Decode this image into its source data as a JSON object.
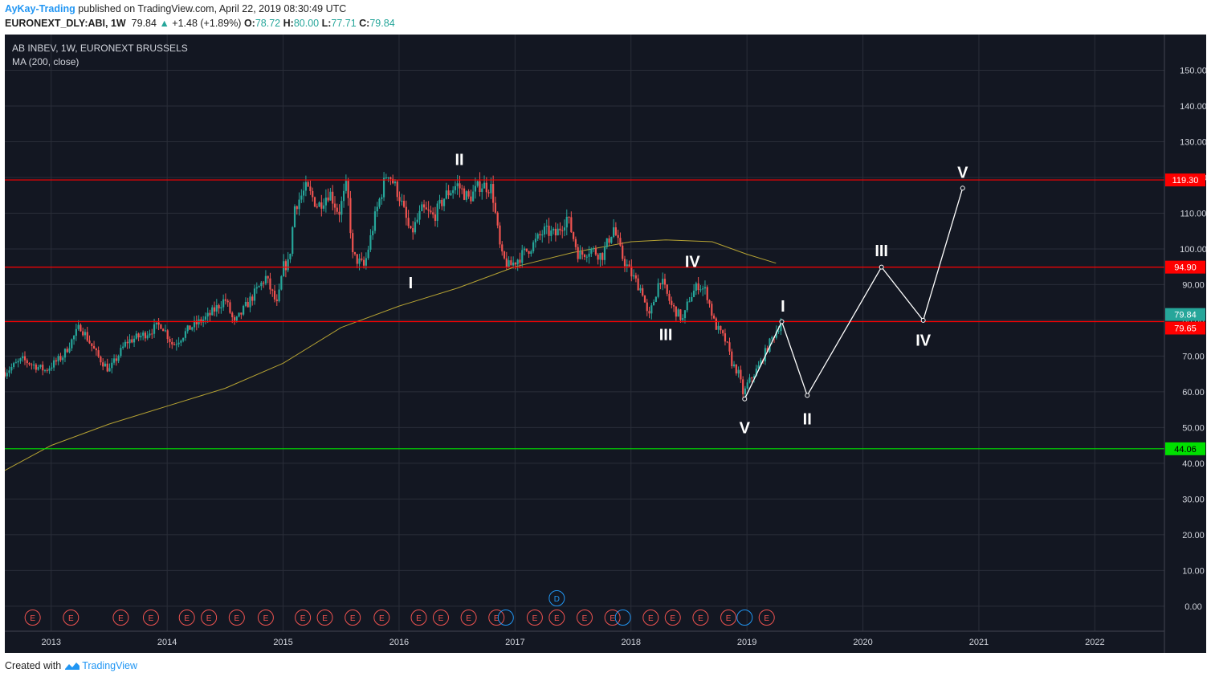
{
  "header": {
    "author": "AyKay-Trading",
    "published_text": "published on TradingView.com, April 22, 2019 08:30:49 UTC",
    "symbol_line": "EURONEXT_DLY:ABI, 1W",
    "last": "79.84",
    "change": "+1.48 (+1.89%)",
    "open_label": "O:",
    "open": "78.72",
    "high_label": "H:",
    "high": "80.00",
    "low_label": "L:",
    "low": "77.71",
    "close_label": "C:",
    "close": "79.84"
  },
  "legend": {
    "title": "AB INBEV, 1W, EURONEXT BRUSSELS",
    "indicator": "MA (200, close)"
  },
  "footer": {
    "created_with": "Created with",
    "brand": "TradingView"
  },
  "colors": {
    "background": "#131722",
    "grid": "#2a2e39",
    "up": "#26a69a",
    "down": "#ef5350",
    "level_red": "#ff0000",
    "level_green": "#00e000",
    "ma": "#b5a233",
    "projection": "#ffffff",
    "last_price": "#26a69a",
    "event": "#ef5350",
    "dividend": "#2196f3"
  },
  "chart_data": {
    "type": "candlestick",
    "title": "AB INBEV, 1W, EURONEXT BRUSSELS",
    "timeframe": "1W",
    "x_range": [
      2012.6,
      2022.6
    ],
    "x_ticks": [
      2013,
      2014,
      2015,
      2016,
      2017,
      2018,
      2019,
      2020,
      2021,
      2022
    ],
    "x_tick_labels": [
      "2013",
      "2014",
      "2015",
      "2016",
      "2017",
      "2018",
      "2019",
      "2020",
      "2021",
      "2022"
    ],
    "ylim": [
      -7,
      160
    ],
    "y_ticks": [
      0,
      10,
      20,
      30,
      40,
      50,
      60,
      70,
      80,
      90,
      100,
      110,
      120,
      130,
      140,
      150
    ],
    "y_tick_labels": [
      "0.00",
      "10.00",
      "20.00",
      "30.00",
      "40.00",
      "50.00",
      "60.00",
      "70.00",
      "80.00",
      "90.00",
      "100.00",
      "110.00",
      "120.00",
      "130.00",
      "140.00",
      "150.00"
    ],
    "price_path": [
      [
        2012.6,
        65.5
      ],
      [
        2012.75,
        69
      ],
      [
        2012.95,
        66
      ],
      [
        2013.1,
        70
      ],
      [
        2013.25,
        78.5
      ],
      [
        2013.4,
        70
      ],
      [
        2013.5,
        66
      ],
      [
        2013.65,
        74
      ],
      [
        2013.8,
        76
      ],
      [
        2013.95,
        79
      ],
      [
        2014.05,
        73
      ],
      [
        2014.2,
        78
      ],
      [
        2014.35,
        81
      ],
      [
        2014.5,
        86
      ],
      [
        2014.58,
        79
      ],
      [
        2014.7,
        85
      ],
      [
        2014.85,
        92
      ],
      [
        2014.95,
        84
      ],
      [
        2015.0,
        95
      ],
      [
        2015.05,
        96
      ],
      [
        2015.1,
        112
      ],
      [
        2015.2,
        117
      ],
      [
        2015.3,
        112
      ],
      [
        2015.4,
        116
      ],
      [
        2015.48,
        110
      ],
      [
        2015.55,
        118
      ],
      [
        2015.6,
        98
      ],
      [
        2015.7,
        95
      ],
      [
        2015.8,
        110
      ],
      [
        2015.9,
        122
      ],
      [
        2016.0,
        115
      ],
      [
        2016.1,
        104
      ],
      [
        2016.2,
        111
      ],
      [
        2016.3,
        109
      ],
      [
        2016.4,
        115
      ],
      [
        2016.5,
        118
      ],
      [
        2016.6,
        114
      ],
      [
        2016.7,
        118
      ],
      [
        2016.8,
        117
      ],
      [
        2016.88,
        98
      ],
      [
        2016.95,
        95
      ],
      [
        2017.05,
        98
      ],
      [
        2017.15,
        101
      ],
      [
        2017.25,
        105
      ],
      [
        2017.35,
        104
      ],
      [
        2017.45,
        109
      ],
      [
        2017.55,
        98
      ],
      [
        2017.65,
        100
      ],
      [
        2017.75,
        98
      ],
      [
        2017.85,
        106
      ],
      [
        2017.92,
        98
      ],
      [
        2018.0,
        93
      ],
      [
        2018.1,
        88
      ],
      [
        2018.15,
        80
      ],
      [
        2018.25,
        92
      ],
      [
        2018.35,
        84
      ],
      [
        2018.45,
        80
      ],
      [
        2018.5,
        86
      ],
      [
        2018.58,
        90
      ],
      [
        2018.65,
        88
      ],
      [
        2018.72,
        79
      ],
      [
        2018.82,
        74
      ],
      [
        2018.87,
        68
      ],
      [
        2018.93,
        65
      ],
      [
        2018.97,
        59
      ],
      [
        2019.0,
        62
      ],
      [
        2019.1,
        67
      ],
      [
        2019.2,
        74
      ],
      [
        2019.3,
        79.84
      ]
    ],
    "series": [
      {
        "name": "MA (200, close)",
        "type": "line",
        "points": [
          [
            2012.6,
            38
          ],
          [
            2013.0,
            45
          ],
          [
            2013.5,
            51
          ],
          [
            2014.0,
            56
          ],
          [
            2014.5,
            61
          ],
          [
            2015.0,
            68
          ],
          [
            2015.5,
            78
          ],
          [
            2016.0,
            84
          ],
          [
            2016.5,
            89
          ],
          [
            2017.0,
            95
          ],
          [
            2017.5,
            99
          ],
          [
            2018.0,
            102
          ],
          [
            2018.3,
            102.5
          ],
          [
            2018.7,
            102
          ],
          [
            2019.0,
            98.5
          ],
          [
            2019.25,
            96
          ]
        ]
      },
      {
        "name": "Elliott wave projection",
        "type": "line",
        "points": [
          [
            2018.98,
            58
          ],
          [
            2019.3,
            79.65
          ],
          [
            2019.52,
            59
          ],
          [
            2020.16,
            94.9
          ],
          [
            2020.52,
            80
          ],
          [
            2020.86,
            117
          ]
        ]
      }
    ],
    "levels": [
      {
        "value": 119.3,
        "label": "119.30",
        "color": "#ff0000"
      },
      {
        "value": 94.9,
        "label": "94.90",
        "color": "#ff0000"
      },
      {
        "value": 79.65,
        "label": "79.65",
        "color": "#ff0000"
      },
      {
        "value": 44.06,
        "label": "44.06",
        "color": "#00e000"
      }
    ],
    "last_price": {
      "value": 79.84,
      "label": "79.84"
    },
    "wave_labels": [
      {
        "text": "I",
        "x": 2016.1,
        "y": 90.5
      },
      {
        "text": "II",
        "x": 2016.52,
        "y": 125
      },
      {
        "text": "III",
        "x": 2018.3,
        "y": 76
      },
      {
        "text": "IV",
        "x": 2018.53,
        "y": 96.5
      },
      {
        "text": "V",
        "x": 2018.98,
        "y": 50
      },
      {
        "text": "I",
        "x": 2019.31,
        "y": 84
      },
      {
        "text": "II",
        "x": 2019.52,
        "y": 52.5
      },
      {
        "text": "III",
        "x": 2020.16,
        "y": 99.5
      },
      {
        "text": "IV",
        "x": 2020.52,
        "y": 74.5
      },
      {
        "text": "V",
        "x": 2020.86,
        "y": 121.5
      }
    ],
    "events": {
      "earnings_label": "E",
      "dividend_label": "D",
      "earnings_x": [
        2012.84,
        2013.17,
        2013.6,
        2013.86,
        2014.17,
        2014.36,
        2014.6,
        2014.85,
        2015.17,
        2015.36,
        2015.6,
        2015.85,
        2016.17,
        2016.36,
        2016.6,
        2016.84,
        2017.17,
        2017.36,
        2017.6,
        2017.84,
        2018.17,
        2018.36,
        2018.6,
        2018.84,
        2019.17
      ],
      "dividend_x": [
        2016.92,
        2017.36,
        2017.93,
        2018.98
      ],
      "dividend_raised_x": [
        2017.36
      ]
    }
  }
}
